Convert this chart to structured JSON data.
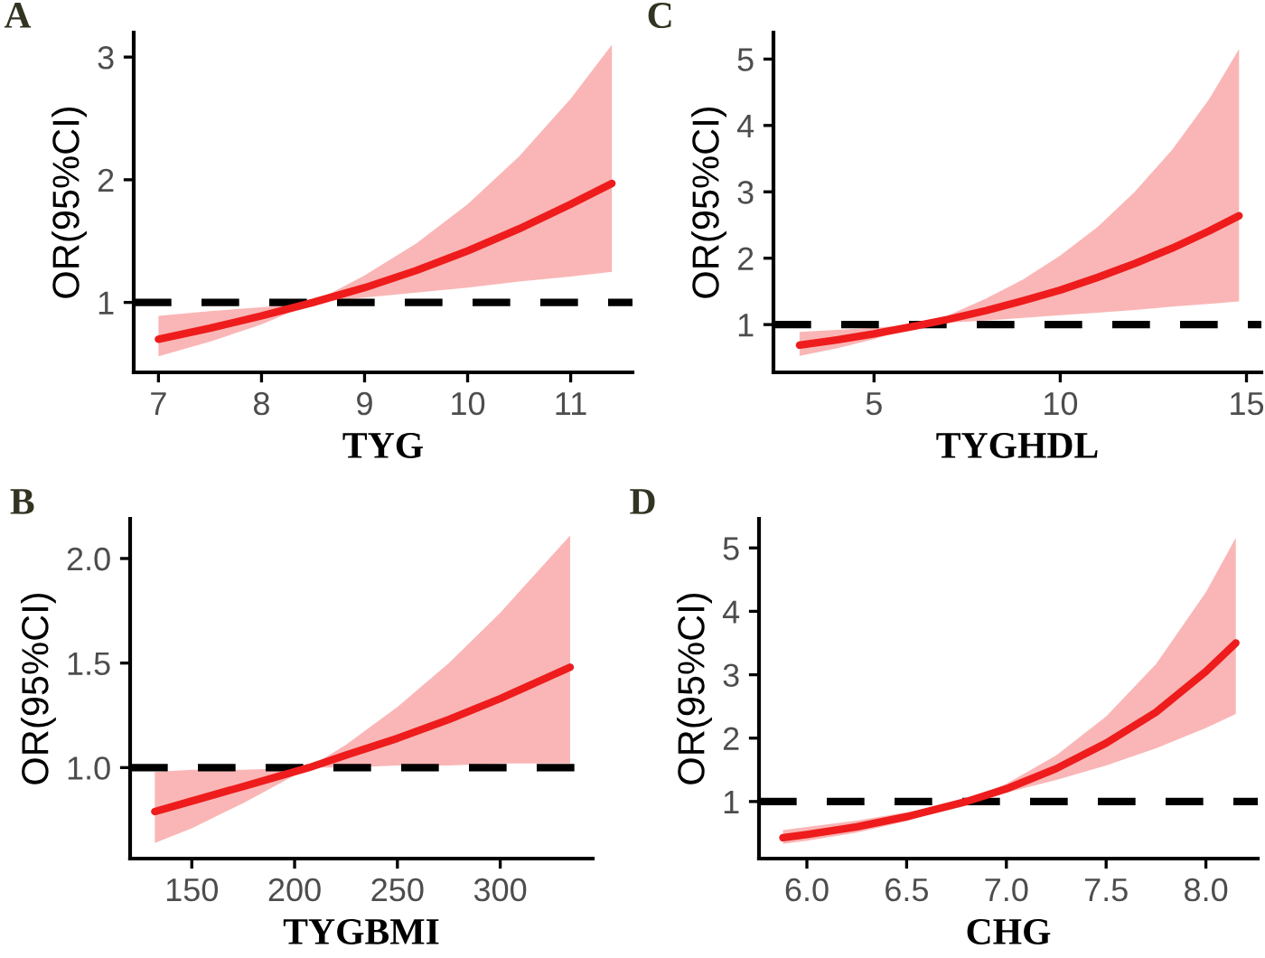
{
  "chart_data": [
    {
      "type": "line",
      "title": "A",
      "xlabel": "TYG",
      "ylabel": "OR(95%CI)",
      "xlim": [
        6.76,
        11.6
      ],
      "ylim": [
        0.43,
        3.2
      ],
      "xticks": [
        7,
        8,
        9,
        10,
        11
      ],
      "yticks": [
        1,
        2,
        3
      ],
      "grid": false,
      "legend": false,
      "ref_lines": [
        {
          "axis": "y",
          "value": 1,
          "color": "#000000",
          "line_style": "dashed"
        }
      ],
      "series": [
        {
          "color": "#ee1c1c",
          "x": [
            7,
            7.5,
            8,
            8.5,
            9,
            9.5,
            10,
            10.5,
            11,
            11.4
          ],
          "values": [
            0.7,
            0.79,
            0.89,
            1.0,
            1.12,
            1.26,
            1.42,
            1.6,
            1.8,
            1.97
          ],
          "lower": [
            0.56,
            0.68,
            0.82,
            1.0,
            1.04,
            1.08,
            1.12,
            1.17,
            1.21,
            1.25
          ],
          "upper": [
            0.89,
            0.93,
            0.96,
            1.0,
            1.22,
            1.48,
            1.8,
            2.19,
            2.66,
            3.1
          ]
        }
      ]
    },
    {
      "type": "line",
      "title": "C",
      "xlabel": "TYGHDL",
      "ylabel": "OR(95%CI)",
      "xlim": [
        2.3,
        15.4
      ],
      "ylim": [
        0.28,
        5.4
      ],
      "xticks": [
        5,
        10,
        15
      ],
      "yticks": [
        1,
        2,
        3,
        4,
        5
      ],
      "grid": false,
      "legend": false,
      "ref_lines": [
        {
          "axis": "y",
          "value": 1,
          "color": "#000000",
          "line_style": "dashed"
        }
      ],
      "series": [
        {
          "color": "#ee1c1c",
          "x": [
            3,
            4,
            5,
            6.3,
            7,
            8,
            9,
            10,
            11,
            12,
            13,
            14,
            14.8
          ],
          "values": [
            0.69,
            0.77,
            0.86,
            1.0,
            1.08,
            1.21,
            1.36,
            1.52,
            1.71,
            1.92,
            2.15,
            2.41,
            2.64
          ],
          "lower": [
            0.53,
            0.64,
            0.78,
            1.0,
            1.03,
            1.06,
            1.1,
            1.14,
            1.18,
            1.22,
            1.27,
            1.31,
            1.35
          ],
          "upper": [
            0.89,
            0.92,
            0.95,
            1.0,
            1.14,
            1.39,
            1.68,
            2.04,
            2.47,
            3.0,
            3.63,
            4.4,
            5.15
          ]
        }
      ]
    },
    {
      "type": "line",
      "title": "B",
      "xlabel": "TYGBMI",
      "ylabel": "OR(95%CI)",
      "xlim": [
        120,
        345
      ],
      "ylim": [
        0.565,
        2.19
      ],
      "xticks": [
        150,
        200,
        250,
        300
      ],
      "yticks": [
        {
          "value": 1,
          "label": "1.0"
        },
        1.5,
        {
          "value": 2,
          "label": "2.0"
        }
      ],
      "grid": false,
      "legend": false,
      "ref_lines": [
        {
          "axis": "y",
          "value": 1,
          "color": "#000000",
          "line_style": "dashed"
        }
      ],
      "series": [
        {
          "color": "#ee1c1c",
          "x": [
            132,
            150,
            175,
            207,
            225,
            250,
            275,
            300,
            334
          ],
          "values": [
            0.79,
            0.84,
            0.91,
            1.0,
            1.06,
            1.14,
            1.23,
            1.33,
            1.48
          ],
          "lower": [
            0.64,
            0.71,
            0.83,
            1.0,
            1.0,
            1.01,
            1.01,
            1.02,
            1.02
          ],
          "upper": [
            0.98,
            0.99,
            0.99,
            1.0,
            1.11,
            1.29,
            1.5,
            1.74,
            2.11
          ]
        }
      ]
    },
    {
      "type": "line",
      "title": "D",
      "xlabel": "CHG",
      "ylabel": "OR(95%CI)",
      "xlim": [
        5.76,
        8.26
      ],
      "ylim": [
        0.1,
        5.46
      ],
      "xticks": [
        {
          "value": 6,
          "label": "6.0"
        },
        6.5,
        {
          "value": 7,
          "label": "7.0"
        },
        7.5,
        {
          "value": 8,
          "label": "8.0"
        }
      ],
      "yticks": [
        1,
        2,
        3,
        4,
        5
      ],
      "grid": false,
      "legend": false,
      "ref_lines": [
        {
          "axis": "y",
          "value": 1,
          "color": "#000000",
          "line_style": "dashed"
        }
      ],
      "series": [
        {
          "color": "#ee1c1c",
          "x": [
            5.88,
            6.0,
            6.25,
            6.5,
            6.8,
            7.0,
            7.25,
            7.5,
            7.75,
            8.0,
            8.15
          ],
          "values": [
            0.43,
            0.48,
            0.6,
            0.76,
            1.0,
            1.2,
            1.52,
            1.92,
            2.41,
            3.05,
            3.5
          ],
          "lower": [
            0.33,
            0.38,
            0.51,
            0.69,
            1.0,
            1.14,
            1.34,
            1.57,
            1.84,
            2.16,
            2.38
          ],
          "upper": [
            0.55,
            0.6,
            0.7,
            0.83,
            1.0,
            1.28,
            1.73,
            2.34,
            3.17,
            4.3,
            5.16
          ]
        }
      ]
    }
  ]
}
